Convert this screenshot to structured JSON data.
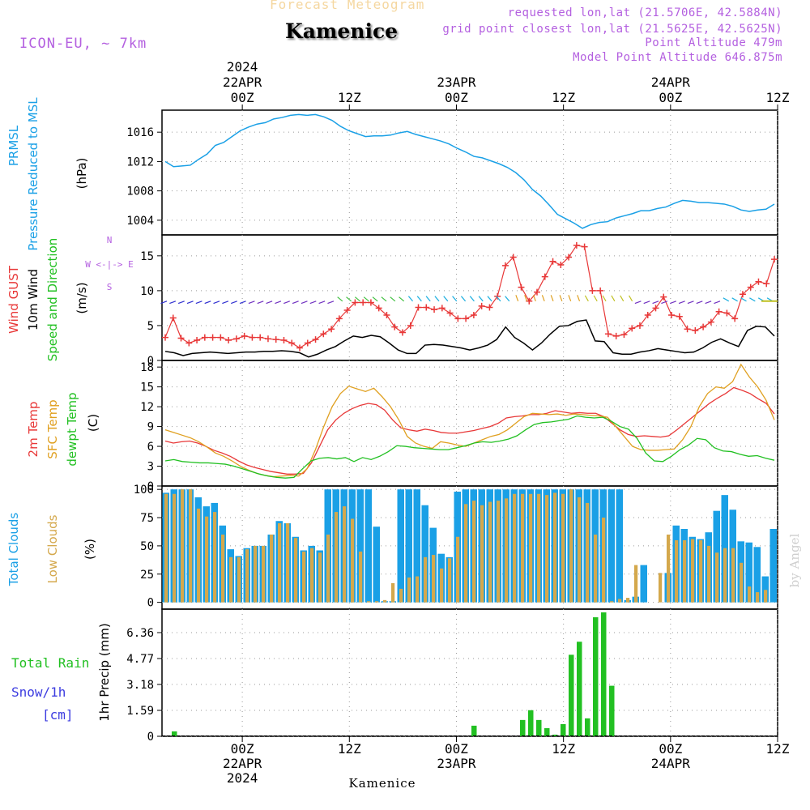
{
  "header": {
    "chart_title": "Forecast Meteogram",
    "station": "Kamenice",
    "model": "ICON-EU, ~ 7km",
    "requested": "requested lon,lat (21.5706E, 42.5884N)",
    "grid_point": "grid point closest lon,lat (21.5625E, 42.5625N)",
    "point_altitude": "Point Altitude 479m",
    "model_point_altitude": "Model Point Altitude 646.875m",
    "footer_station": "Kamenice",
    "credit": "by Angel"
  },
  "time_axis": {
    "hours_total": 69,
    "ticks": [
      {
        "hour": 9,
        "top": [
          "2024",
          "22APR",
          "00Z"
        ],
        "bottom": [
          "00Z",
          "22APR",
          "2024"
        ]
      },
      {
        "hour": 21,
        "top": [
          "12Z"
        ],
        "bottom": [
          "12Z"
        ]
      },
      {
        "hour": 33,
        "top": [
          "23APR",
          "00Z"
        ],
        "bottom": [
          "00Z",
          "23APR"
        ]
      },
      {
        "hour": 45,
        "top": [
          "12Z"
        ],
        "bottom": [
          "12Z"
        ]
      },
      {
        "hour": 57,
        "top": [
          "24APR",
          "00Z"
        ],
        "bottom": [
          "00Z",
          "24APR"
        ]
      },
      {
        "hour": 69,
        "top": [
          "12Z"
        ],
        "bottom": [
          "12Z"
        ]
      }
    ]
  },
  "colors": {
    "pressure": "#1aa0e6",
    "gust": "#e83838",
    "wind": "#000000",
    "wind_label": "#22c022",
    "compass": "#b460e0",
    "temp2m": "#e83838",
    "sfc_temp": "#e0a020",
    "dewpt": "#22c022",
    "total_clouds": "#1aa0e6",
    "low_clouds": "#d4a84c",
    "rain": "#22c022",
    "snow_label": "#3c3ce0"
  },
  "chart_data": [
    {
      "type": "line",
      "panel": "pressure",
      "title": "Pressure Reduced to MSL",
      "label_lines": [
        "PRMSL",
        "Pressure Reduced to MSL",
        "(hPa)"
      ],
      "ylim": [
        1002,
        1019
      ],
      "yticks": [
        1004,
        1008,
        1012,
        1016
      ],
      "series": [
        {
          "name": "PRMSL",
          "color": "#1aa0e6",
          "values": [
            1012.0,
            1011.3,
            1011.4,
            1011.5,
            1012.3,
            1013.0,
            1014.2,
            1014.6,
            1015.4,
            1016.2,
            1016.7,
            1017.1,
            1017.3,
            1017.8,
            1018.0,
            1018.3,
            1018.4,
            1018.3,
            1018.4,
            1018.1,
            1017.6,
            1016.8,
            1016.2,
            1015.8,
            1015.4,
            1015.5,
            1015.5,
            1015.6,
            1015.9,
            1016.1,
            1015.7,
            1015.4,
            1015.1,
            1014.8,
            1014.4,
            1013.8,
            1013.3,
            1012.7,
            1012.5,
            1012.1,
            1011.7,
            1011.2,
            1010.5,
            1009.5,
            1008.2,
            1007.3,
            1006.1,
            1004.8,
            1004.2,
            1003.6,
            1002.9,
            1003.4,
            1003.7,
            1003.8,
            1004.3,
            1004.6,
            1004.9,
            1005.3,
            1005.3,
            1005.6,
            1005.8,
            1006.3,
            1006.7,
            1006.6,
            1006.4,
            1006.4,
            1006.3,
            1006.2,
            1005.9,
            1005.4,
            1005.2,
            1005.4,
            1005.5,
            1006.2
          ]
        }
      ]
    },
    {
      "type": "line",
      "panel": "wind",
      "label_lines": [
        "Wind GUST",
        "10m Wind",
        "Speed and Direction",
        "(m/s)"
      ],
      "compass": [
        "N",
        "W <-|-> E",
        "S"
      ],
      "ylim": [
        0,
        18
      ],
      "yticks": [
        0,
        5,
        10,
        15
      ],
      "series": [
        {
          "name": "Wind GUST",
          "color": "#e83838",
          "marker": "+",
          "values": [
            3.3,
            6.1,
            3.2,
            2.5,
            2.9,
            3.3,
            3.3,
            3.3,
            2.9,
            3.1,
            3.5,
            3.3,
            3.3,
            3.1,
            3.0,
            2.9,
            2.5,
            1.8,
            2.5,
            3.0,
            3.8,
            4.5,
            6.0,
            7.2,
            8.3,
            8.3,
            8.3,
            7.5,
            6.5,
            4.8,
            4.0,
            5.0,
            7.6,
            7.6,
            7.3,
            7.5,
            6.8,
            6.0,
            6.0,
            6.5,
            7.8,
            7.6,
            9.2,
            13.6,
            14.8,
            10.5,
            8.5,
            9.8,
            12.0,
            14.2,
            13.7,
            14.8,
            16.5,
            16.3,
            10.0,
            10.0,
            3.8,
            3.5,
            3.7,
            4.6,
            5.0,
            6.5,
            7.5,
            9.1,
            6.5,
            6.3,
            4.5,
            4.3,
            4.8,
            5.5,
            7.0,
            6.8,
            6.0,
            9.5,
            10.5,
            11.3,
            11.0,
            14.5
          ]
        },
        {
          "name": "10m Wind",
          "color": "#000000",
          "values": [
            1.3,
            1.1,
            0.7,
            1.0,
            1.1,
            1.2,
            1.1,
            1.0,
            1.1,
            1.2,
            1.2,
            1.3,
            1.3,
            1.4,
            1.3,
            1.1,
            0.5,
            0.9,
            1.5,
            2.0,
            2.8,
            3.5,
            3.3,
            3.6,
            3.4,
            2.5,
            1.5,
            1.0,
            1.0,
            2.2,
            2.3,
            2.2,
            2.0,
            1.8,
            1.5,
            1.8,
            2.2,
            3.0,
            4.8,
            3.3,
            2.5,
            1.5,
            2.5,
            3.8,
            4.9,
            5.0,
            5.6,
            5.8,
            2.8,
            2.7,
            1.1,
            0.9,
            0.9,
            1.2,
            1.4,
            1.7,
            1.5,
            1.3,
            1.1,
            1.2,
            1.8,
            2.6,
            3.1,
            2.5,
            2.0,
            4.3,
            4.9,
            4.8,
            3.5
          ]
        }
      ],
      "arrows_color_note": "direction arrows drawn along ~8.5 m/s line"
    },
    {
      "type": "line",
      "panel": "temperature",
      "label_lines": [
        "2m Temp",
        "SFC Temp",
        "dewpt Temp",
        "(C)"
      ],
      "ylim": [
        0,
        19
      ],
      "yticks": [
        0,
        3,
        6,
        9,
        12,
        15,
        18
      ],
      "series": [
        {
          "name": "2m Temp",
          "color": "#e83838",
          "values": [
            6.8,
            6.5,
            6.7,
            6.8,
            6.5,
            6.0,
            5.4,
            5.0,
            4.5,
            3.8,
            3.2,
            2.8,
            2.5,
            2.2,
            2.0,
            1.8,
            1.8,
            1.9,
            3.5,
            6.0,
            8.5,
            10.0,
            11.0,
            11.7,
            12.2,
            12.5,
            12.3,
            11.5,
            10.0,
            8.8,
            8.5,
            8.3,
            8.6,
            8.4,
            8.1,
            8.0,
            8.0,
            8.2,
            8.4,
            8.7,
            9.0,
            9.5,
            10.3,
            10.5,
            10.6,
            10.8,
            10.8,
            11.0,
            11.4,
            11.2,
            11.0,
            11.1,
            11.0,
            11.0,
            10.5,
            9.5,
            8.5,
            7.8,
            7.5,
            7.6,
            7.5,
            7.4,
            7.6,
            8.5,
            9.5,
            10.5,
            11.5,
            12.5,
            13.3,
            14.0,
            14.9,
            14.5,
            14.0,
            13.2,
            12.5,
            10.9
          ]
        },
        {
          "name": "SFC Temp",
          "color": "#e0a020",
          "values": [
            8.5,
            8.1,
            7.7,
            7.3,
            6.7,
            5.9,
            5.0,
            4.5,
            3.8,
            3.0,
            2.4,
            1.9,
            1.6,
            1.4,
            1.5,
            1.6,
            1.5,
            2.6,
            5.5,
            9.0,
            12.0,
            14.0,
            15.1,
            14.7,
            14.3,
            14.8,
            13.5,
            12.0,
            10.0,
            7.5,
            6.5,
            6.0,
            5.7,
            6.7,
            6.5,
            6.2,
            6.0,
            6.5,
            7.0,
            7.5,
            7.8,
            8.5,
            9.5,
            10.5,
            11.0,
            10.9,
            10.8,
            10.9,
            10.7,
            10.9,
            10.8,
            10.7,
            10.6,
            10.4,
            9.0,
            7.5,
            6.0,
            5.5,
            5.4,
            5.4,
            5.5,
            5.6,
            7.0,
            9.0,
            12.0,
            14.0,
            15.0,
            14.8,
            15.8,
            18.4,
            16.5,
            15.0,
            13.0,
            10.0
          ]
        },
        {
          "name": "dewpt Temp",
          "color": "#22c022",
          "values": [
            3.8,
            4.0,
            3.7,
            3.6,
            3.5,
            3.5,
            3.4,
            3.3,
            3.0,
            2.6,
            2.2,
            1.8,
            1.5,
            1.3,
            1.2,
            1.3,
            2.6,
            3.8,
            4.2,
            4.3,
            4.1,
            4.3,
            3.7,
            4.3,
            4.0,
            4.5,
            5.2,
            6.1,
            6.0,
            5.8,
            5.7,
            5.6,
            5.5,
            5.5,
            5.8,
            6.1,
            6.5,
            6.7,
            6.6,
            6.8,
            7.1,
            7.6,
            8.5,
            9.3,
            9.6,
            9.7,
            9.9,
            10.1,
            10.6,
            10.4,
            10.3,
            10.4,
            9.8,
            9.0,
            8.6,
            7.2,
            5.0,
            3.8,
            3.7,
            4.5,
            5.5,
            6.2,
            7.2,
            7.0,
            5.8,
            5.3,
            5.2,
            4.8,
            4.5,
            4.6,
            4.2,
            3.9
          ]
        }
      ]
    },
    {
      "type": "bar",
      "panel": "clouds",
      "label_lines": [
        "Total Clouds",
        "Low Clouds",
        "(%)"
      ],
      "ylim": [
        -6,
        103
      ],
      "yticks": [
        0,
        25,
        50,
        75,
        100
      ],
      "series": [
        {
          "name": "Total Clouds",
          "color": "#1aa0e6",
          "values": [
            97,
            100,
            100,
            100,
            93,
            85,
            88,
            68,
            47,
            41,
            48,
            50,
            50,
            60,
            72,
            70,
            58,
            46,
            50,
            46,
            100,
            100,
            100,
            100,
            100,
            100,
            67,
            1,
            1,
            100,
            100,
            100,
            86,
            66,
            43,
            40,
            98,
            100,
            100,
            100,
            100,
            100,
            100,
            100,
            100,
            100,
            100,
            100,
            100,
            100,
            100,
            100,
            100,
            100,
            100,
            100,
            100,
            2,
            5,
            33,
            0,
            0,
            26,
            68,
            65,
            58,
            56,
            62,
            81,
            95,
            82,
            54,
            53,
            49,
            23,
            65
          ]
        },
        {
          "name": "Low Clouds",
          "color": "#d4a84c",
          "values": [
            96,
            96,
            100,
            100,
            83,
            76,
            80,
            60,
            40,
            40,
            47,
            50,
            50,
            60,
            70,
            70,
            57,
            45,
            48,
            44,
            60,
            80,
            85,
            74,
            45,
            1,
            1,
            2,
            17,
            12,
            22,
            23,
            40,
            42,
            30,
            39,
            58,
            87,
            90,
            86,
            89,
            90,
            92,
            96,
            96,
            96,
            96,
            95,
            97,
            96,
            100,
            93,
            88,
            60,
            75,
            1,
            3,
            4,
            33,
            0,
            0,
            26,
            60,
            55,
            55,
            56,
            55,
            50,
            44,
            48,
            48,
            35,
            14,
            9,
            11
          ]
        }
      ]
    },
    {
      "type": "bar",
      "panel": "precip",
      "label_lines": [
        "Total Rain",
        "Snow/1h",
        "[cm]",
        "1hr Precip (mm)"
      ],
      "ylim": [
        0,
        7.8
      ],
      "yticks": [
        0,
        1.59,
        3.18,
        4.77,
        6.36
      ],
      "series": [
        {
          "name": "Total Rain",
          "color": "#22c022",
          "values": [
            0,
            0.3,
            0,
            0,
            0,
            0,
            0,
            0,
            0,
            0,
            0,
            0,
            0,
            0,
            0,
            0,
            0,
            0,
            0,
            0,
            0,
            0,
            0,
            0,
            0,
            0,
            0,
            0,
            0,
            0,
            0,
            0,
            0,
            0,
            0,
            0,
            0,
            0,
            0.65,
            0,
            0,
            0,
            0,
            0,
            1.0,
            1.6,
            1.0,
            0.5,
            0.1,
            0.75,
            5.0,
            5.8,
            1.1,
            7.3,
            7.6,
            3.1,
            0,
            0,
            0,
            0,
            0,
            0,
            0,
            0,
            0,
            0,
            0,
            0,
            0,
            0,
            0,
            0,
            0,
            0,
            0,
            0
          ]
        }
      ]
    }
  ]
}
